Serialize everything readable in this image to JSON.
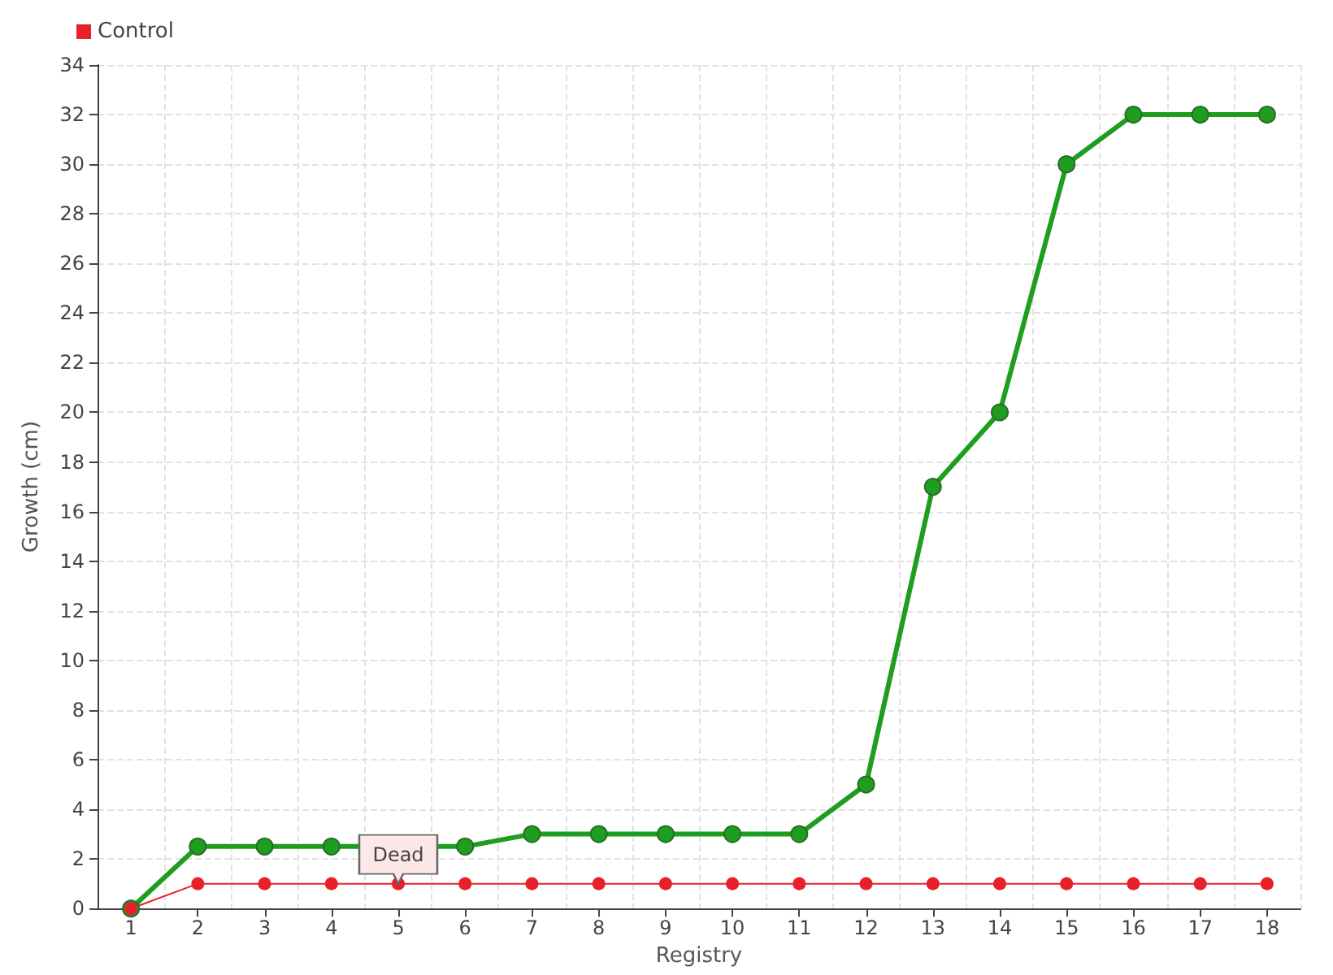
{
  "chart_data": {
    "type": "line",
    "xlabel": "Registry",
    "ylabel": "Growth (cm)",
    "categories": [
      "1",
      "2",
      "3",
      "4",
      "5",
      "6",
      "7",
      "8",
      "9",
      "10",
      "11",
      "12",
      "13",
      "14",
      "15",
      "16",
      "17",
      "18"
    ],
    "series": [
      {
        "color": "#1e9e1e",
        "values": [
          0,
          2.5,
          2.5,
          2.5,
          null,
          2.5,
          3,
          3,
          3,
          3,
          3,
          5,
          17,
          20,
          30,
          32,
          32,
          32
        ]
      },
      {
        "name": "Control",
        "color": "#e8202a",
        "values": [
          0,
          1,
          1,
          1,
          1,
          1,
          1,
          1,
          1,
          1,
          1,
          1,
          1,
          1,
          1,
          1,
          1,
          1
        ]
      }
    ],
    "ylim": [
      0,
      34
    ],
    "yticks": [
      0,
      2,
      4,
      6,
      8,
      10,
      12,
      14,
      16,
      18,
      20,
      22,
      24,
      26,
      28,
      30,
      32,
      34
    ],
    "annotations": [
      {
        "text": "Dead",
        "x": "5",
        "y": 1
      }
    ],
    "grid": true,
    "legend": "top left",
    "marker": "circle",
    "line_style": "solid"
  }
}
